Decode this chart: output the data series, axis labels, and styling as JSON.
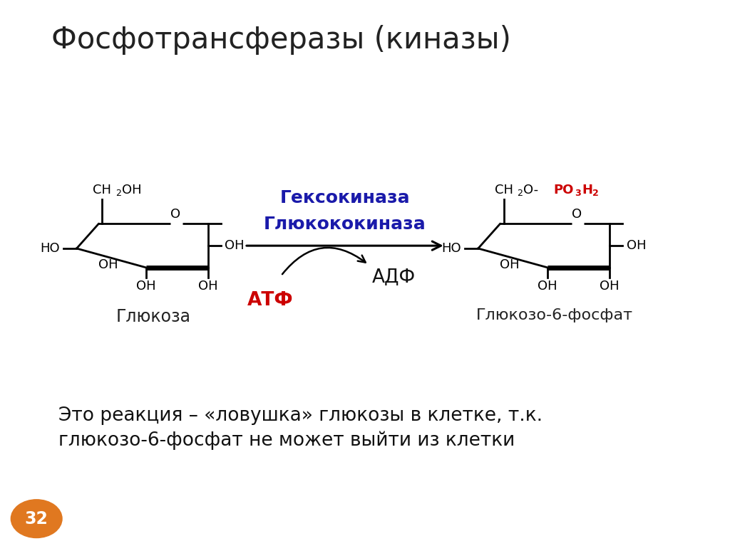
{
  "title": "Фосфотрансферазы (киназы)",
  "title_fontsize": 30,
  "title_color": "#222222",
  "bg_color": "#ffffff",
  "label_glucose": "Глюкоза",
  "label_glucose6p": "Глюкозо-6-фосфат",
  "label_hexokinase_line1": "Гексокиназа",
  "label_hexokinase_line2": "Глюкококиназа",
  "label_atf": "АТФ",
  "label_adf": "АДФ",
  "label_atf_color": "#cc0000",
  "label_adf_color": "#111111",
  "label_enzyme_color": "#1a1aaa",
  "footnote_line1": "Это реакция – «ловушка» глюкозы в клетке, т.к.",
  "footnote_line2": "глюкозо-6-фосфат не может выйти из клетки",
  "footnote_fontsize": 19,
  "page_number": "32",
  "page_number_color": "#e07820",
  "ring_color": "#000000",
  "ring_linewidth": 2.0,
  "bold_linewidth": 5.0
}
